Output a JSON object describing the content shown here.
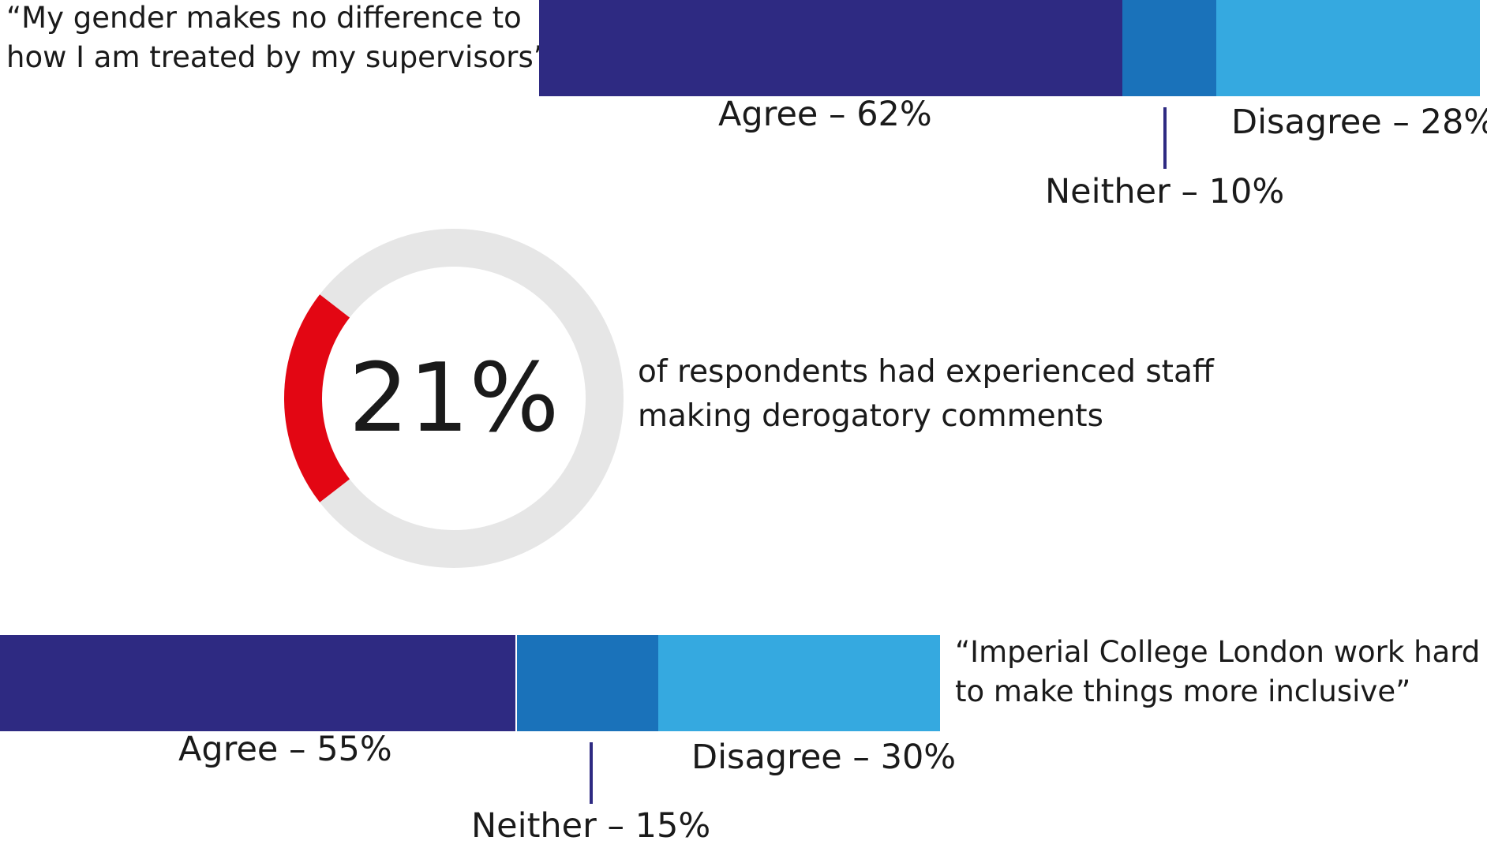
{
  "colors": {
    "agree": "#2e2a82",
    "neither": "#1a72ba",
    "disagree": "#35a9e0",
    "highlight": "#e30613",
    "track": "#e6e6e6"
  },
  "chart_data": [
    {
      "type": "bar",
      "orientation": "horizontal-stacked",
      "title": "“My gender makes no difference to how I am treated by my supervisors”",
      "title_lines": [
        "“My gender makes no difference to",
        "how I am treated by my supervisors”"
      ],
      "categories": [
        "Agree",
        "Neither",
        "Disagree"
      ],
      "values": [
        62,
        10,
        28
      ],
      "labels": [
        "Agree – 62%",
        "Neither – 10%",
        "Disagree – 28%"
      ]
    },
    {
      "type": "pie",
      "value": 21,
      "center_label": "21%",
      "caption_lines": [
        "of respondents had experienced staff",
        "making derogatory comments"
      ]
    },
    {
      "type": "bar",
      "orientation": "horizontal-stacked",
      "title": "“Imperial College London work hard to make things more inclusive”",
      "title_lines": [
        "“Imperial College London work hard",
        "to make things more inclusive”"
      ],
      "categories": [
        "Agree",
        "Neither",
        "Disagree"
      ],
      "values": [
        55,
        15,
        30
      ],
      "labels": [
        "Agree – 55%",
        "Neither – 15%",
        "Disagree – 30%"
      ]
    }
  ]
}
